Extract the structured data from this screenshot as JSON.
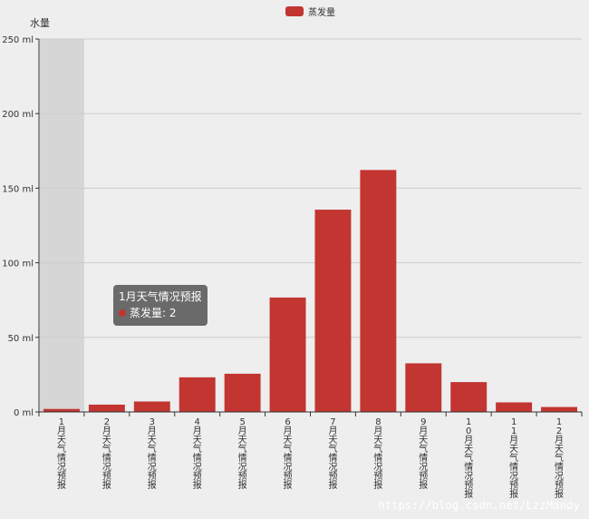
{
  "chart_data": {
    "type": "bar",
    "legend": [
      "蒸发量"
    ],
    "legend_position": "top-center",
    "ylabel": "水量",
    "ylim": [
      0,
      250
    ],
    "yticks": [
      "0 ml",
      "50 ml",
      "100 ml",
      "150 ml",
      "200 ml",
      "250 ml"
    ],
    "grid": true,
    "categories": [
      "1月天气情况预报",
      "2月天气情况预报",
      "3月天气情况预报",
      "4月天气情况预报",
      "5月天气情况预报",
      "6月天气情况预报",
      "7月天气情况预报",
      "8月天气情况预报",
      "9月天气情况预报",
      "10月天气情况预报",
      "11月天气情况预报",
      "12月天气情况预报"
    ],
    "series": [
      {
        "name": "蒸发量",
        "color": "#c23531",
        "values": [
          2.0,
          4.9,
          7.0,
          23.2,
          25.6,
          76.7,
          135.6,
          162.2,
          32.6,
          20.0,
          6.4,
          3.3
        ]
      }
    ],
    "highlighted_index": 0
  },
  "tooltip": {
    "title": "1月天气情况预报",
    "series_label": "蒸发量: 2"
  },
  "watermark": "https://blog.csdn.net/LzzMandy"
}
